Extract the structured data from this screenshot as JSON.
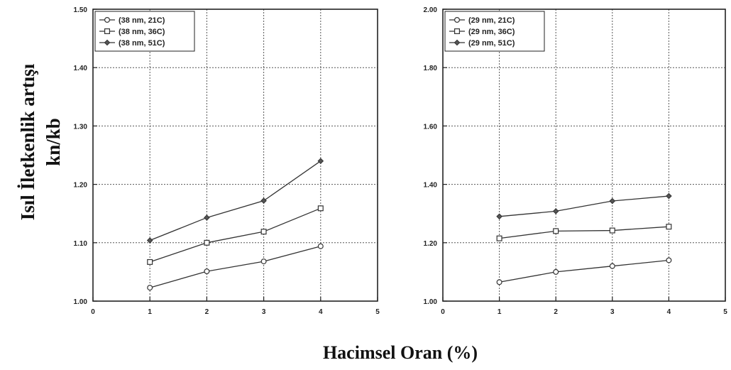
{
  "figure": {
    "ylabel_line1": "Isıl İletkenlik artışı",
    "ylabel_line2": "kn/kb",
    "xlabel": "Hacimsel Oran (%)"
  },
  "chart_data": [
    {
      "type": "line",
      "x_ticks": [
        "0",
        "1",
        "2",
        "3",
        "4",
        "5"
      ],
      "y_ticks": [
        "1.00",
        "1.10",
        "1.20",
        "1.30",
        "1.40",
        "1.50"
      ],
      "xlim": [
        0,
        5
      ],
      "ylim": [
        1.0,
        1.5
      ],
      "grid": true,
      "legend_position": "top-left",
      "series": [
        {
          "name": "(38 nm, 21C)",
          "marker": "circle",
          "x": [
            1,
            2,
            3,
            4
          ],
          "y": [
            1.023,
            1.051,
            1.068,
            1.094
          ]
        },
        {
          "name": "(38 nm, 36C)",
          "marker": "square",
          "x": [
            1,
            2,
            3,
            4
          ],
          "y": [
            1.067,
            1.1,
            1.119,
            1.159
          ]
        },
        {
          "name": "(38 nm, 51C)",
          "marker": "diamond",
          "x": [
            1,
            2,
            3,
            4
          ],
          "y": [
            1.104,
            1.143,
            1.172,
            1.24
          ]
        }
      ]
    },
    {
      "type": "line",
      "x_ticks": [
        "0",
        "1",
        "2",
        "3",
        "4",
        "5"
      ],
      "y_ticks": [
        "1.00",
        "1.20",
        "1.40",
        "1.60",
        "1.80",
        "2.00"
      ],
      "xlim": [
        0,
        5
      ],
      "ylim": [
        1.0,
        2.0
      ],
      "grid": true,
      "legend_position": "top-left",
      "series": [
        {
          "name": "(29 nm, 21C)",
          "marker": "circle",
          "x": [
            1,
            2,
            3,
            4
          ],
          "y": [
            1.065,
            1.1,
            1.12,
            1.14
          ]
        },
        {
          "name": "(29 nm, 36C)",
          "marker": "square",
          "x": [
            1,
            2,
            3,
            4
          ],
          "y": [
            1.215,
            1.24,
            1.242,
            1.255
          ]
        },
        {
          "name": "(29 nm, 51C)",
          "marker": "diamond",
          "x": [
            1,
            2,
            3,
            4
          ],
          "y": [
            1.29,
            1.308,
            1.343,
            1.36
          ]
        }
      ]
    }
  ]
}
